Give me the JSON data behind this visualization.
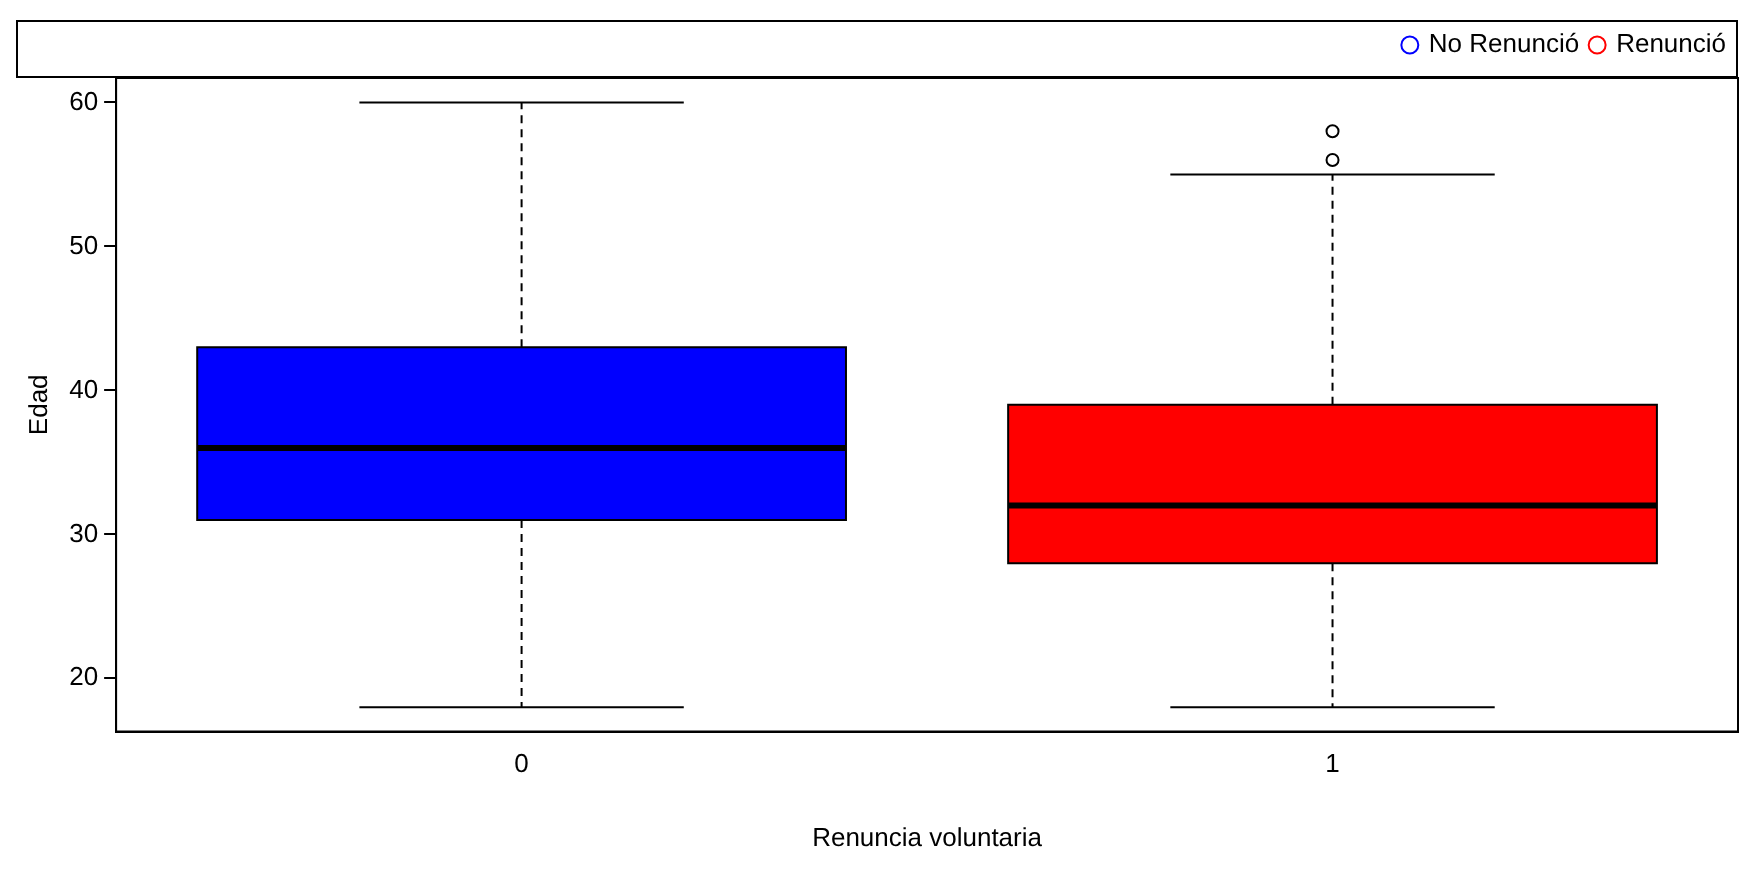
{
  "chart_data": {
    "type": "box",
    "xlabel": "Renuncia voluntaria",
    "ylabel": "Edad",
    "categories": [
      "0",
      "1"
    ],
    "series": [
      {
        "name": "No Renunció",
        "color": "#0000ff",
        "boxes": [
          {
            "low": 18,
            "q1": 31,
            "median": 36,
            "q3": 43,
            "high": 60
          },
          null
        ]
      },
      {
        "name": "Renunció",
        "color": "#ff0000",
        "boxes": [
          null,
          {
            "low": 18,
            "q1": 28,
            "median": 32,
            "q3": 39,
            "high": 55,
            "outliers": [
              56,
              58
            ]
          }
        ]
      }
    ],
    "ylim": [
      16.3,
      61.7
    ],
    "yticks": [
      20,
      30,
      40,
      50,
      60
    ],
    "legend": "top right"
  }
}
